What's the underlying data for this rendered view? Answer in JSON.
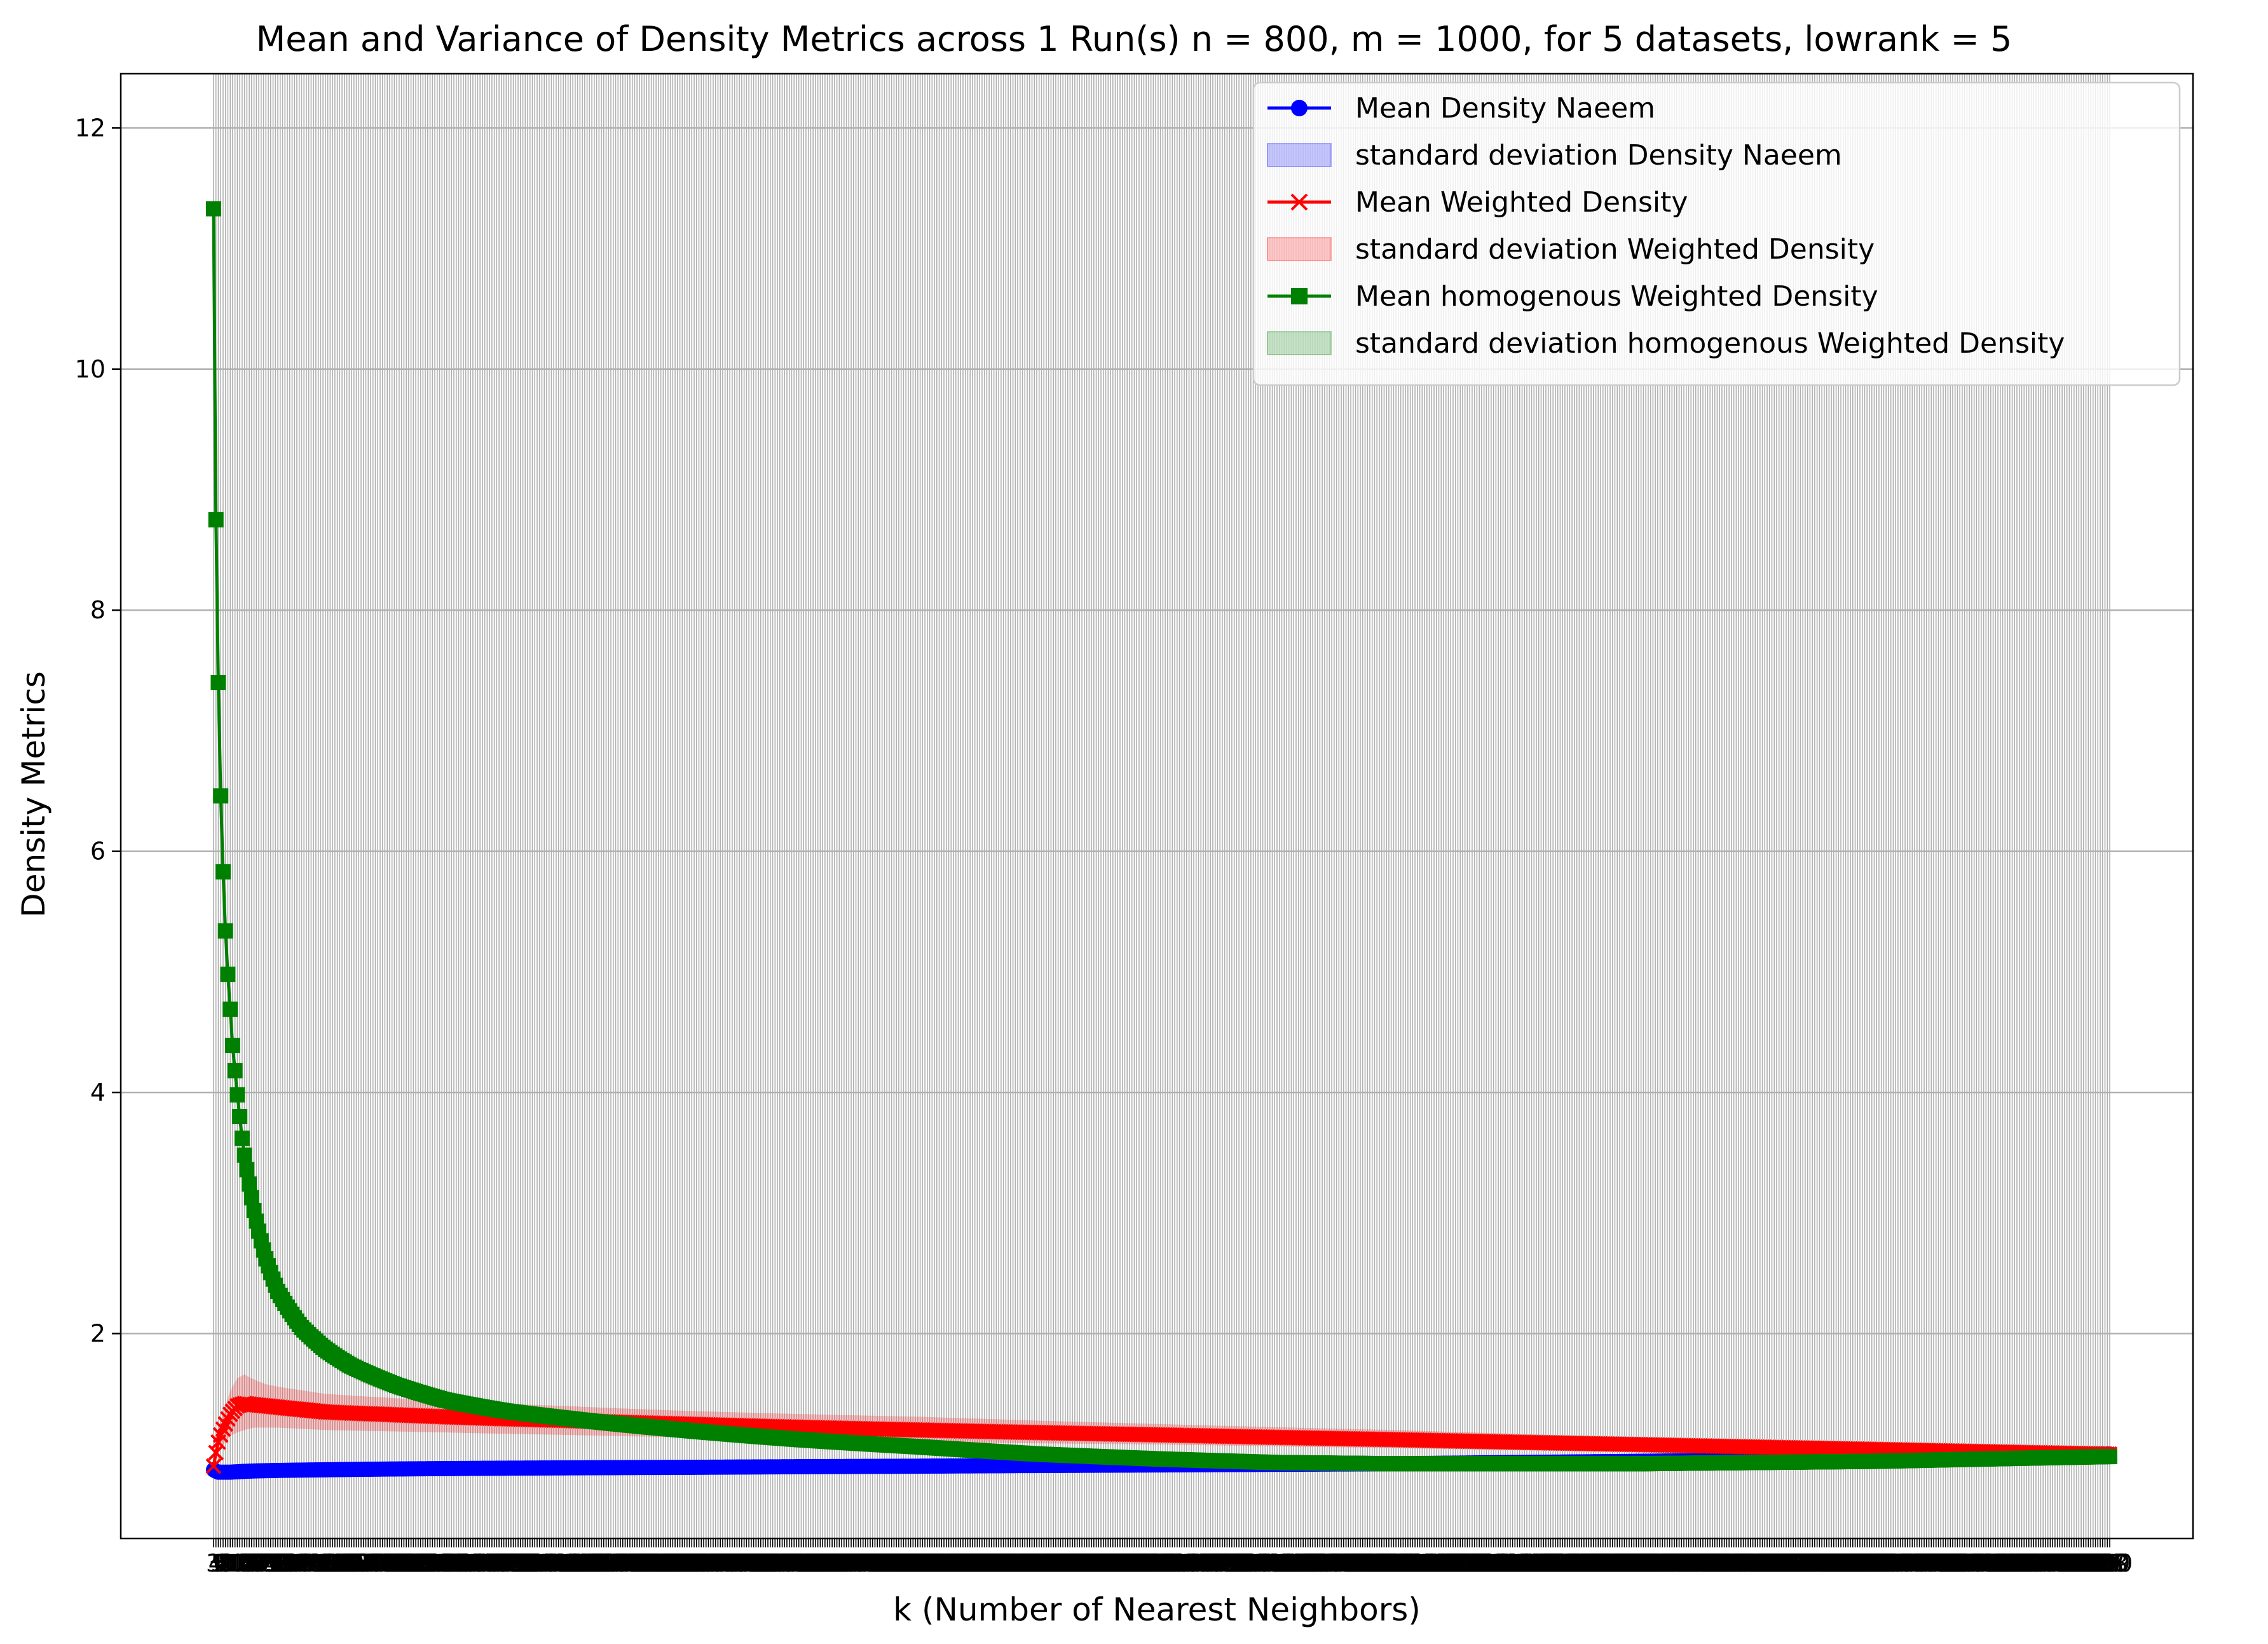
{
  "chart_data": {
    "type": "line",
    "title": "Mean and Variance of Density Metrics across 1 Run(s) n  = 800, m  = 1000, for 5 datasets, lowrank = 5",
    "xlabel": "k (Number of Nearest Neighbors)",
    "ylabel": "Density Metrics",
    "xlim": [
      -36,
      835
    ],
    "ylim": [
      0.3,
      12.45
    ],
    "yticks": [
      2,
      4,
      6,
      8,
      10,
      12
    ],
    "x_range": [
      3,
      800
    ],
    "grid": true,
    "x_ticks_note": "one overlapping tick label per k from 3 to 800",
    "legend_position": "top-right",
    "colors": {
      "naeem": "#0000ff",
      "weighted": "#ff0000",
      "homogenous": "#008000",
      "grid": "#b0b0b0"
    },
    "legend": [
      {
        "label": "Mean Density Naeem",
        "kind": "line",
        "marker": "circle",
        "color": "#0000ff"
      },
      {
        "label": "standard deviation Density Naeem",
        "kind": "patch",
        "color": "#0000ff"
      },
      {
        "label": "Mean Weighted Density",
        "kind": "line",
        "marker": "x",
        "color": "#ff0000"
      },
      {
        "label": "standard deviation Weighted Density",
        "kind": "patch",
        "color": "#ff0000"
      },
      {
        "label": "Mean homogenous Weighted Density",
        "kind": "line",
        "marker": "square",
        "color": "#008000"
      },
      {
        "label": "standard deviation homogenous Weighted Density",
        "kind": "patch",
        "color": "#008000"
      }
    ],
    "series": [
      {
        "name": "Mean Density Naeem",
        "color": "#0000ff",
        "marker": "circle",
        "x": [
          3,
          5,
          10,
          20,
          50,
          100,
          200,
          300,
          400,
          500,
          600,
          700,
          800
        ],
        "y": [
          0.87,
          0.85,
          0.85,
          0.86,
          0.87,
          0.88,
          0.89,
          0.9,
          0.91,
          0.92,
          0.94,
          0.96,
          1.0
        ],
        "std_lower": [
          0.85,
          0.83,
          0.83,
          0.84,
          0.85,
          0.86,
          0.87,
          0.88,
          0.89,
          0.9,
          0.92,
          0.95,
          0.99
        ],
        "std_upper": [
          0.89,
          0.87,
          0.87,
          0.88,
          0.89,
          0.9,
          0.91,
          0.92,
          0.93,
          0.94,
          0.96,
          0.97,
          1.01
        ]
      },
      {
        "name": "Mean Weighted Density",
        "color": "#ff0000",
        "marker": "x",
        "x": [
          3,
          5,
          8,
          10,
          13,
          16,
          20,
          25,
          30,
          40,
          50,
          75,
          100,
          150,
          200,
          300,
          400,
          500,
          600,
          700,
          800
        ],
        "y": [
          0.9,
          1.1,
          1.25,
          1.33,
          1.4,
          1.42,
          1.41,
          1.4,
          1.39,
          1.37,
          1.35,
          1.33,
          1.31,
          1.28,
          1.25,
          1.2,
          1.16,
          1.12,
          1.08,
          1.04,
          1.0
        ],
        "std_lower": [
          0.85,
          1.0,
          1.1,
          1.15,
          1.18,
          1.2,
          1.22,
          1.22,
          1.22,
          1.21,
          1.2,
          1.19,
          1.18,
          1.16,
          1.14,
          1.1,
          1.08,
          1.05,
          1.02,
          1.0,
          0.98
        ],
        "std_upper": [
          0.95,
          1.2,
          1.4,
          1.52,
          1.63,
          1.66,
          1.62,
          1.58,
          1.56,
          1.53,
          1.5,
          1.47,
          1.44,
          1.4,
          1.36,
          1.31,
          1.25,
          1.2,
          1.14,
          1.08,
          1.02
        ]
      },
      {
        "name": "Mean homogenous Weighted Density",
        "color": "#008000",
        "marker": "square",
        "x": [
          3,
          4,
          5,
          6,
          7,
          8,
          9,
          10,
          11,
          12,
          13,
          14,
          15,
          16,
          17,
          18,
          20,
          25,
          30,
          40,
          50,
          60,
          80,
          100,
          125,
          150,
          200,
          250,
          300,
          350,
          400,
          450,
          500,
          600,
          700,
          800
        ],
        "y": [
          11.33,
          8.75,
          7.4,
          6.46,
          5.83,
          5.34,
          4.98,
          4.69,
          4.39,
          4.18,
          3.98,
          3.8,
          3.62,
          3.48,
          3.36,
          3.24,
          3.02,
          2.62,
          2.35,
          2.05,
          1.87,
          1.74,
          1.57,
          1.45,
          1.36,
          1.3,
          1.2,
          1.12,
          1.06,
          1.0,
          0.96,
          0.93,
          0.92,
          0.92,
          0.94,
          0.98
        ],
        "std_lower": [
          11.33,
          8.75,
          7.4,
          6.46,
          5.83,
          5.34,
          4.98,
          4.69,
          4.39,
          4.18,
          3.98,
          3.8,
          3.62,
          3.48,
          3.36,
          3.24,
          3.0,
          2.58,
          2.3,
          1.98,
          1.79,
          1.66,
          1.5,
          1.38,
          1.3,
          1.24,
          1.15,
          1.08,
          1.02,
          0.97,
          0.94,
          0.91,
          0.9,
          0.9,
          0.93,
          0.97
        ],
        "std_upper": [
          11.33,
          8.75,
          7.4,
          6.46,
          5.83,
          5.34,
          4.98,
          4.69,
          4.39,
          4.18,
          3.98,
          3.8,
          3.62,
          3.48,
          3.36,
          3.24,
          3.04,
          2.66,
          2.4,
          2.12,
          1.95,
          1.82,
          1.64,
          1.52,
          1.42,
          1.36,
          1.25,
          1.16,
          1.1,
          1.03,
          0.98,
          0.95,
          0.94,
          0.94,
          0.95,
          0.99
        ]
      }
    ]
  }
}
